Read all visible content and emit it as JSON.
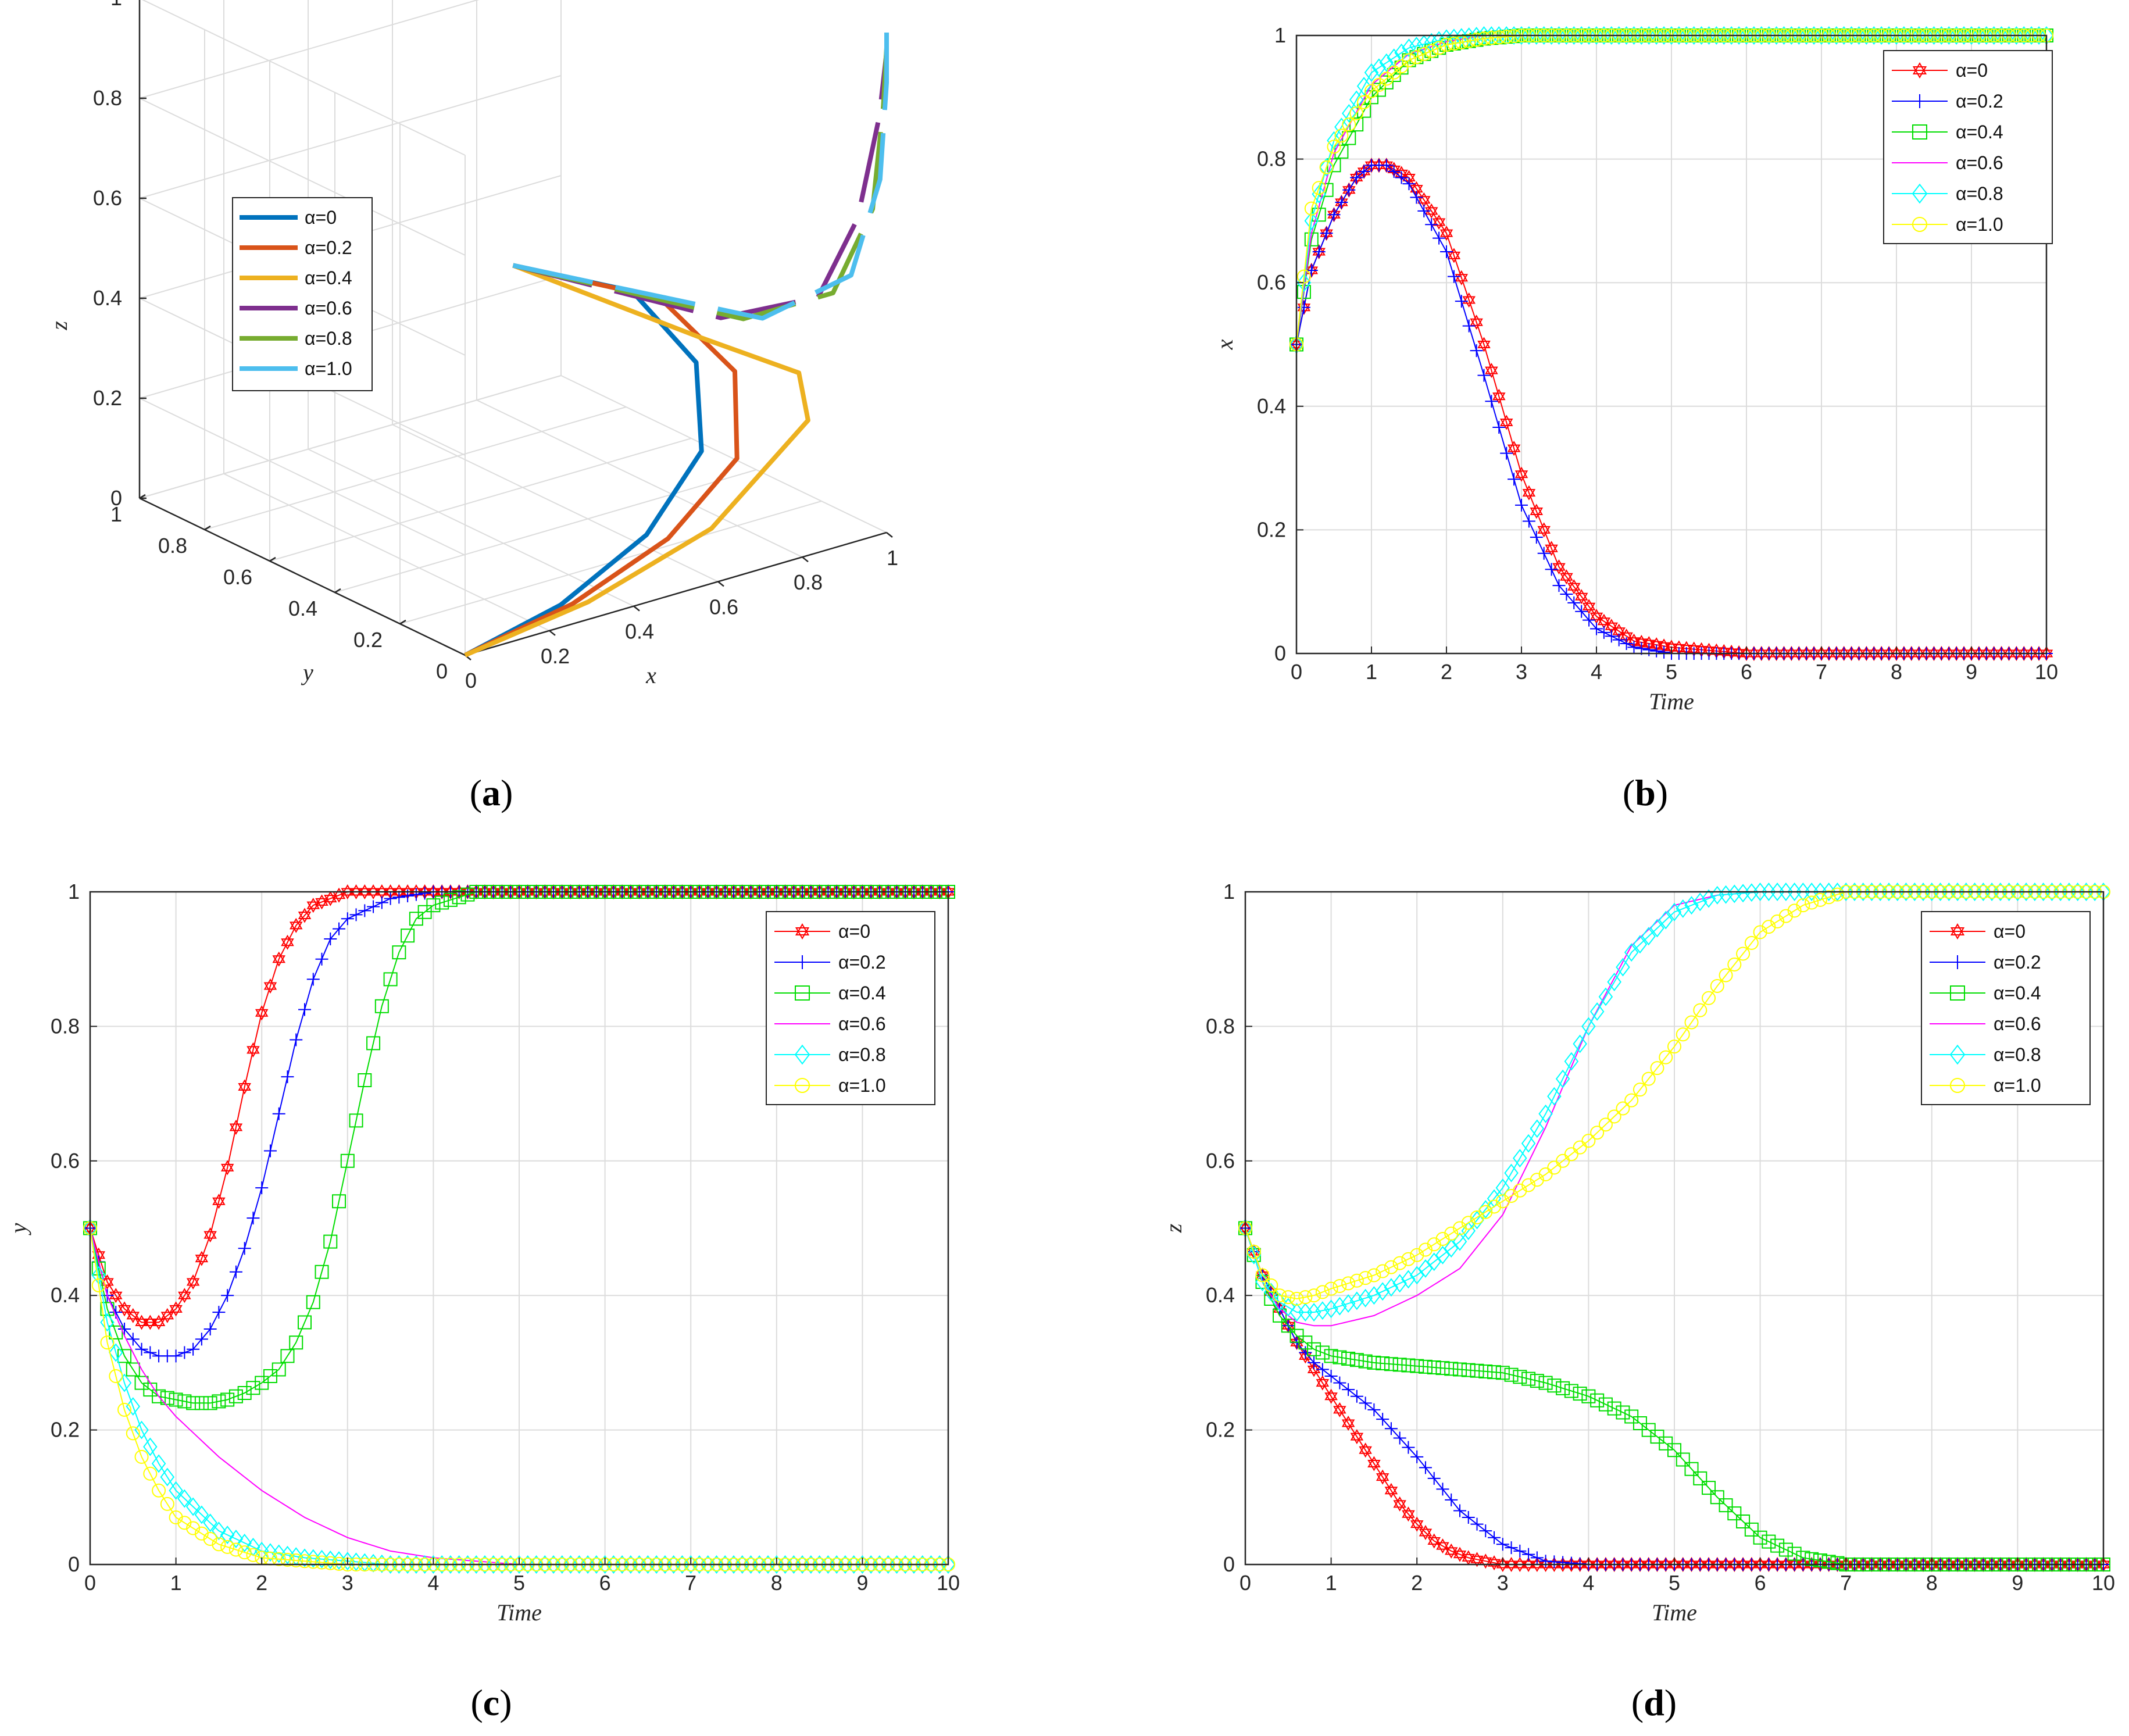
{
  "colors": {
    "a3d": [
      "#0072BD",
      "#D95319",
      "#EDB120",
      "#7E2F8E",
      "#77AC30",
      "#4DBEEE"
    ],
    "a2d": [
      "#ff0000",
      "#0000ff",
      "#00dd00",
      "#ff00ff",
      "#00ffff",
      "#ffff00"
    ]
  },
  "chart_data": [
    {
      "id": "a",
      "type": "line3d",
      "caption": "a",
      "xlabel": "x",
      "ylabel": "y",
      "zlabel": "z",
      "xticks": [
        "0",
        "0.2",
        "0.4",
        "0.6",
        "0.8",
        "1"
      ],
      "yticks": [
        "0",
        "0.2",
        "0.4",
        "0.6",
        "0.8",
        "1"
      ],
      "zticks": [
        "0",
        "0.2",
        "0.4",
        "0.6",
        "0.8",
        "1"
      ],
      "legend": [
        "α=0",
        "α=0.2",
        "α=0.4",
        "α=0.6",
        "α=0.8",
        "α=1.0"
      ],
      "series": [
        {
          "name": "α=0",
          "x": [
            0.5,
            0.72,
            0.78,
            0.7,
            0.5,
            0.25,
            0
          ],
          "y": [
            0.5,
            0.42,
            0.3,
            0.18,
            0.09,
            0.03,
            0
          ],
          "z": [
            0.5,
            0.42,
            0.3,
            0.18,
            0.09,
            0.03,
            0
          ]
        },
        {
          "name": "α=0.2",
          "x": [
            0.5,
            0.74,
            0.81,
            0.73,
            0.52,
            0.27,
            0
          ],
          "y": [
            0.5,
            0.36,
            0.22,
            0.11,
            0.05,
            0.02,
            0
          ],
          "z": [
            0.5,
            0.42,
            0.3,
            0.18,
            0.09,
            0.03,
            0
          ]
        },
        {
          "name": "α=0.4",
          "x": [
            0.5,
            0.77,
            0.9,
            0.86,
            0.6,
            0.3,
            0
          ],
          "y": [
            0.5,
            0.28,
            0.14,
            0.06,
            0.02,
            0.01,
            0
          ],
          "z": [
            0.5,
            0.36,
            0.3,
            0.24,
            0.1,
            0.03,
            0
          ]
        },
        {
          "name": "α=0.6",
          "x": [
            0.5,
            0.8,
            0.93,
            0.97,
            0.99,
            1,
            1
          ],
          "y": [
            0.5,
            0.25,
            0.12,
            0.05,
            0.01,
            0,
            0
          ],
          "z": [
            0.5,
            0.4,
            0.45,
            0.62,
            0.83,
            0.96,
            1
          ]
        },
        {
          "name": "α=0.8",
          "x": [
            0.5,
            0.83,
            0.95,
            0.99,
            1,
            1,
            1
          ],
          "y": [
            0.5,
            0.22,
            0.1,
            0.03,
            0.01,
            0,
            0
          ],
          "z": [
            0.5,
            0.4,
            0.46,
            0.64,
            0.85,
            0.97,
            1
          ]
        },
        {
          "name": "α=1.0",
          "x": [
            0.5,
            0.86,
            0.97,
            1,
            1,
            1,
            1
          ],
          "y": [
            0.5,
            0.2,
            0.07,
            0.02,
            0,
            0,
            0
          ],
          "z": [
            0.5,
            0.4,
            0.5,
            0.7,
            0.9,
            0.98,
            1
          ]
        }
      ]
    },
    {
      "id": "b",
      "type": "line",
      "caption": "b",
      "xlabel": "Time",
      "ylabel": "x",
      "xlim": [
        0,
        10
      ],
      "ylim": [
        0,
        1
      ],
      "xticks": [
        0,
        1,
        2,
        3,
        4,
        5,
        6,
        7,
        8,
        9,
        10
      ],
      "yticks": [
        0,
        0.2,
        0.4,
        0.6,
        0.8,
        1
      ],
      "legend_position": "top-right",
      "series": [
        {
          "name": "α=0",
          "marker": "hexagram",
          "x": [
            0,
            0.2,
            0.5,
            0.8,
            1.0,
            1.2,
            1.5,
            2.0,
            2.5,
            3.0,
            3.5,
            4.0,
            4.5,
            5.0,
            6.0,
            10
          ],
          "y": [
            0.5,
            0.62,
            0.71,
            0.77,
            0.79,
            0.79,
            0.77,
            0.68,
            0.5,
            0.29,
            0.14,
            0.06,
            0.02,
            0.01,
            0,
            0
          ]
        },
        {
          "name": "α=0.2",
          "marker": "plus",
          "x": [
            0,
            0.2,
            0.5,
            0.8,
            1.0,
            1.2,
            1.5,
            2.0,
            2.5,
            3.0,
            3.5,
            4.0,
            4.5,
            5.0,
            6.0,
            10
          ],
          "y": [
            0.5,
            0.62,
            0.71,
            0.77,
            0.79,
            0.79,
            0.76,
            0.65,
            0.45,
            0.24,
            0.11,
            0.04,
            0.01,
            0,
            0,
            0
          ]
        },
        {
          "name": "α=0.4",
          "marker": "square",
          "x": [
            0,
            0.2,
            0.5,
            1.0,
            1.5,
            2.0,
            2.5,
            3.0,
            4.0,
            10
          ],
          "y": [
            0.5,
            0.67,
            0.79,
            0.9,
            0.96,
            0.985,
            0.995,
            1,
            1,
            1
          ]
        },
        {
          "name": "α=0.6",
          "marker": "none",
          "x": [
            0,
            0.2,
            0.5,
            1.0,
            1.5,
            2.0,
            2.5,
            3.0,
            4.0,
            10
          ],
          "y": [
            0.5,
            0.68,
            0.81,
            0.92,
            0.97,
            0.99,
            1,
            1,
            1,
            1
          ]
        },
        {
          "name": "α=0.8",
          "marker": "diamond",
          "x": [
            0,
            0.2,
            0.5,
            1.0,
            1.5,
            2.0,
            2.5,
            3.0,
            4.0,
            10
          ],
          "y": [
            0.5,
            0.7,
            0.83,
            0.94,
            0.98,
            0.995,
            1,
            1,
            1,
            1
          ]
        },
        {
          "name": "α=1.0",
          "marker": "circle",
          "x": [
            0,
            0.2,
            0.5,
            1.0,
            1.5,
            2.0,
            2.5,
            3.0,
            4.0,
            10
          ],
          "y": [
            0.5,
            0.72,
            0.82,
            0.91,
            0.96,
            0.985,
            0.995,
            1,
            1,
            1
          ]
        }
      ]
    },
    {
      "id": "c",
      "type": "line",
      "caption": "c",
      "xlabel": "Time",
      "ylabel": "y",
      "xlim": [
        0,
        10
      ],
      "ylim": [
        0,
        1
      ],
      "xticks": [
        0,
        1,
        2,
        3,
        4,
        5,
        6,
        7,
        8,
        9,
        10
      ],
      "yticks": [
        0,
        0.2,
        0.4,
        0.6,
        0.8,
        1
      ],
      "legend_position": "top-right",
      "series": [
        {
          "name": "α=0",
          "marker": "hexagram",
          "x": [
            0,
            0.2,
            0.4,
            0.6,
            0.8,
            1.0,
            1.2,
            1.4,
            1.6,
            1.8,
            2.0,
            2.2,
            2.4,
            2.6,
            2.8,
            3.0,
            3.5,
            4.0,
            10
          ],
          "y": [
            0.5,
            0.42,
            0.38,
            0.36,
            0.36,
            0.38,
            0.42,
            0.49,
            0.59,
            0.71,
            0.82,
            0.9,
            0.95,
            0.98,
            0.99,
            1,
            1,
            1,
            1
          ]
        },
        {
          "name": "α=0.2",
          "marker": "plus",
          "x": [
            0,
            0.2,
            0.4,
            0.6,
            0.8,
            1.0,
            1.2,
            1.4,
            1.6,
            1.8,
            2.0,
            2.2,
            2.4,
            2.6,
            2.8,
            3.0,
            3.5,
            4.0,
            4.5,
            10
          ],
          "y": [
            0.5,
            0.4,
            0.35,
            0.32,
            0.31,
            0.31,
            0.32,
            0.35,
            0.4,
            0.47,
            0.56,
            0.67,
            0.78,
            0.87,
            0.93,
            0.96,
            0.99,
            1,
            1,
            1
          ]
        },
        {
          "name": "α=0.4",
          "marker": "square",
          "x": [
            0,
            0.2,
            0.4,
            0.6,
            0.8,
            1.0,
            1.2,
            1.4,
            1.6,
            1.8,
            2.0,
            2.2,
            2.4,
            2.6,
            2.8,
            3.0,
            3.2,
            3.4,
            3.6,
            3.8,
            4.0,
            4.5,
            5.0,
            10
          ],
          "y": [
            0.5,
            0.38,
            0.31,
            0.27,
            0.25,
            0.245,
            0.24,
            0.24,
            0.245,
            0.255,
            0.27,
            0.29,
            0.33,
            0.39,
            0.48,
            0.6,
            0.72,
            0.83,
            0.91,
            0.96,
            0.98,
            1,
            1,
            1
          ]
        },
        {
          "name": "α=0.6",
          "marker": "none",
          "x": [
            0,
            0.2,
            0.4,
            0.6,
            0.8,
            1.0,
            1.5,
            2.0,
            2.5,
            3.0,
            3.5,
            4.0,
            4.5,
            5.0,
            10
          ],
          "y": [
            0.5,
            0.4,
            0.34,
            0.29,
            0.25,
            0.22,
            0.16,
            0.11,
            0.07,
            0.04,
            0.02,
            0.01,
            0.005,
            0,
            0
          ]
        },
        {
          "name": "α=0.8",
          "marker": "diamond",
          "x": [
            0,
            0.2,
            0.4,
            0.6,
            0.8,
            1.0,
            1.5,
            2.0,
            2.5,
            3.0,
            3.5,
            4.0,
            10
          ],
          "y": [
            0.5,
            0.36,
            0.27,
            0.2,
            0.15,
            0.11,
            0.05,
            0.02,
            0.01,
            0.005,
            0,
            0,
            0
          ]
        },
        {
          "name": "α=1.0",
          "marker": "circle",
          "x": [
            0,
            0.2,
            0.4,
            0.6,
            0.8,
            1.0,
            1.5,
            2.0,
            2.5,
            3.0,
            3.5,
            4.0,
            10
          ],
          "y": [
            0.5,
            0.33,
            0.23,
            0.16,
            0.11,
            0.07,
            0.03,
            0.01,
            0.005,
            0,
            0,
            0,
            0
          ]
        }
      ]
    },
    {
      "id": "d",
      "type": "line",
      "caption": "d",
      "xlabel": "Time",
      "ylabel": "z",
      "xlim": [
        0,
        10
      ],
      "ylim": [
        0,
        1
      ],
      "xticks": [
        0,
        1,
        2,
        3,
        4,
        5,
        6,
        7,
        8,
        9,
        10
      ],
      "yticks": [
        0,
        0.2,
        0.4,
        0.6,
        0.8,
        1
      ],
      "legend_position": "top-right",
      "series": [
        {
          "name": "α=0",
          "marker": "hexagram",
          "x": [
            0,
            0.2,
            0.4,
            0.6,
            0.8,
            1.0,
            1.2,
            1.4,
            1.6,
            1.8,
            2.0,
            2.2,
            2.4,
            2.6,
            2.8,
            3.0,
            3.5,
            10
          ],
          "y": [
            0.5,
            0.43,
            0.38,
            0.33,
            0.29,
            0.25,
            0.21,
            0.17,
            0.13,
            0.09,
            0.06,
            0.035,
            0.02,
            0.01,
            0.005,
            0,
            0,
            0
          ]
        },
        {
          "name": "α=0.2",
          "marker": "plus",
          "x": [
            0,
            0.2,
            0.4,
            0.6,
            0.8,
            1.0,
            1.5,
            2.0,
            2.5,
            3.0,
            3.5,
            4.0,
            10
          ],
          "y": [
            0.5,
            0.43,
            0.38,
            0.33,
            0.3,
            0.28,
            0.23,
            0.16,
            0.08,
            0.03,
            0.005,
            0,
            0
          ]
        },
        {
          "name": "α=0.4",
          "marker": "square",
          "x": [
            0,
            0.2,
            0.4,
            0.6,
            0.8,
            1.0,
            1.5,
            2.0,
            2.5,
            3.0,
            3.5,
            4.0,
            4.5,
            5.0,
            5.5,
            6.0,
            6.5,
            7.0,
            10
          ],
          "y": [
            0.5,
            0.42,
            0.37,
            0.34,
            0.32,
            0.31,
            0.3,
            0.295,
            0.29,
            0.285,
            0.27,
            0.25,
            0.22,
            0.17,
            0.1,
            0.04,
            0.01,
            0,
            0
          ]
        },
        {
          "name": "α=0.6",
          "marker": "none",
          "x": [
            0,
            0.2,
            0.4,
            0.6,
            0.8,
            1.0,
            1.5,
            2.0,
            2.5,
            3.0,
            3.5,
            4.0,
            4.5,
            5.0,
            5.5,
            6.0,
            7.0,
            10
          ],
          "y": [
            0.5,
            0.42,
            0.38,
            0.36,
            0.355,
            0.355,
            0.37,
            0.4,
            0.44,
            0.52,
            0.65,
            0.8,
            0.92,
            0.98,
            0.995,
            1,
            1,
            1
          ]
        },
        {
          "name": "α=0.8",
          "marker": "diamond",
          "x": [
            0,
            0.2,
            0.4,
            0.6,
            0.8,
            1.0,
            1.5,
            2.0,
            2.5,
            3.0,
            3.5,
            4.0,
            4.5,
            5.0,
            5.5,
            6.0,
            7.0,
            10
          ],
          "y": [
            0.5,
            0.42,
            0.39,
            0.375,
            0.375,
            0.38,
            0.4,
            0.43,
            0.48,
            0.56,
            0.67,
            0.8,
            0.91,
            0.97,
            0.995,
            1,
            1,
            1
          ]
        },
        {
          "name": "α=1.0",
          "marker": "circle",
          "x": [
            0,
            0.2,
            0.4,
            0.6,
            0.8,
            1.0,
            1.5,
            2.0,
            2.5,
            3.0,
            3.5,
            4.0,
            4.5,
            5.0,
            5.5,
            6.0,
            6.5,
            7.0,
            10
          ],
          "y": [
            0.5,
            0.43,
            0.4,
            0.395,
            0.4,
            0.41,
            0.43,
            0.46,
            0.5,
            0.54,
            0.58,
            0.63,
            0.69,
            0.77,
            0.86,
            0.94,
            0.98,
            1,
            1
          ]
        }
      ]
    }
  ]
}
